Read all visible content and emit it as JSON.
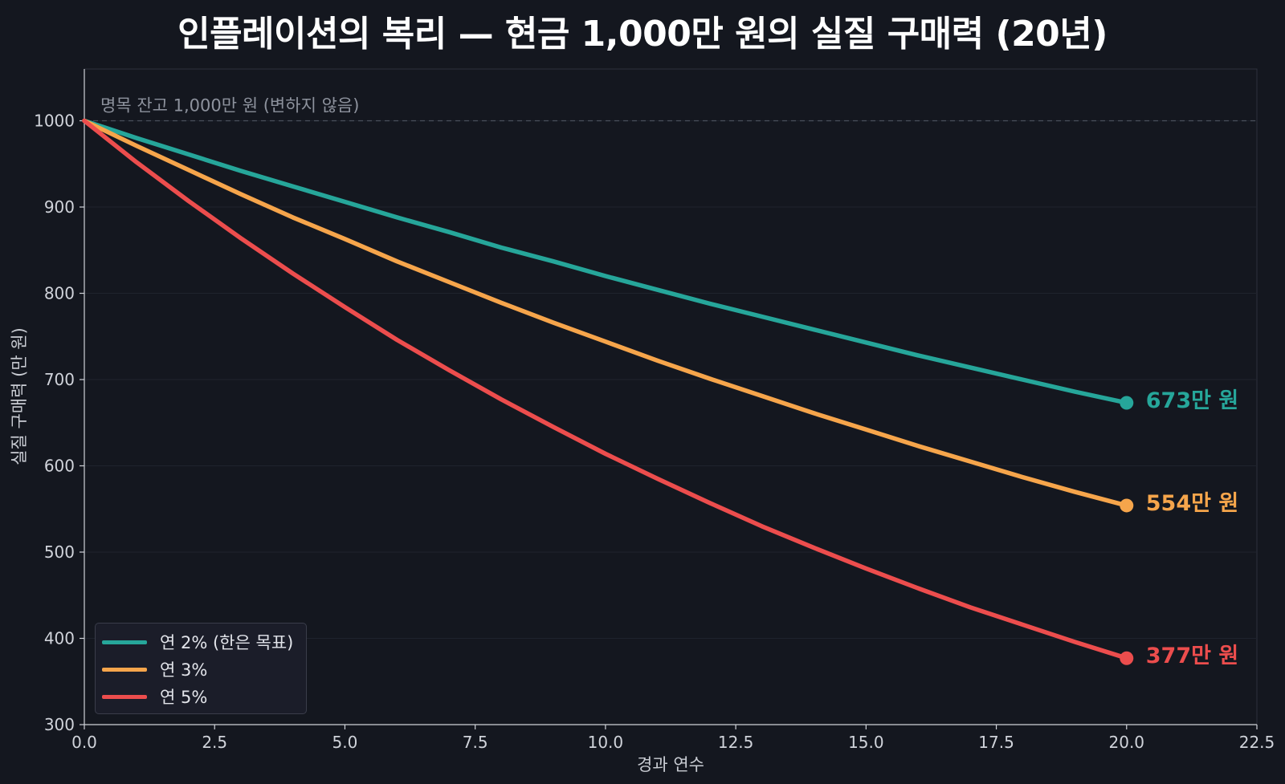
{
  "chart_data": {
    "type": "line",
    "title": "인플레이션의 복리 — 현금 1,000만 원의 실질 구매력 (20년)",
    "xlabel": "경과 연수",
    "ylabel": "실질 구매력 (만 원)",
    "xlim": [
      0,
      22.5
    ],
    "ylim": [
      300,
      1060
    ],
    "xticks": [
      "0.0",
      "2.5",
      "5.0",
      "7.5",
      "10.0",
      "12.5",
      "15.0",
      "17.5",
      "20.0",
      "22.5"
    ],
    "xtick_values": [
      0,
      2.5,
      5,
      7.5,
      10,
      12.5,
      15,
      17.5,
      20,
      22.5
    ],
    "yticks": [
      "300",
      "400",
      "500",
      "600",
      "700",
      "800",
      "900",
      "1000"
    ],
    "ytick_values": [
      300,
      400,
      500,
      600,
      700,
      800,
      900,
      1000
    ],
    "grid": true,
    "legend_position": "bottom-left",
    "reference_line": {
      "y": 1000,
      "label": "명목 잔고 1,000만 원 (변하지 않음)",
      "color": "#4a4f5c"
    },
    "series": [
      {
        "name": "연 2% (한은 목표)",
        "rate": 0.02,
        "color": "#26a69a",
        "end_label": "673만 원",
        "x": [
          0,
          1,
          2,
          3,
          4,
          5,
          6,
          7,
          8,
          9,
          10,
          11,
          12,
          13,
          14,
          15,
          16,
          17,
          18,
          19,
          20
        ],
        "y": [
          1000,
          980,
          961,
          942,
          924,
          906,
          888,
          871,
          853,
          837,
          820,
          804,
          788,
          773,
          758,
          743,
          728,
          714,
          700,
          686,
          673
        ]
      },
      {
        "name": "연 3%",
        "rate": 0.03,
        "color": "#f6a54b",
        "end_label": "554만 원",
        "x": [
          0,
          1,
          2,
          3,
          4,
          5,
          6,
          7,
          8,
          9,
          10,
          11,
          12,
          13,
          14,
          15,
          16,
          17,
          18,
          19,
          20
        ],
        "y": [
          1000,
          971,
          943,
          915,
          888,
          863,
          837,
          813,
          789,
          766,
          744,
          722,
          701,
          681,
          661,
          642,
          623,
          605,
          587,
          570,
          554
        ]
      },
      {
        "name": "연 5%",
        "rate": 0.05,
        "color": "#ec4d4d",
        "end_label": "377만 원",
        "x": [
          0,
          1,
          2,
          3,
          4,
          5,
          6,
          7,
          8,
          9,
          10,
          11,
          12,
          13,
          14,
          15,
          16,
          17,
          18,
          19,
          20
        ],
        "y": [
          1000,
          952,
          907,
          864,
          823,
          784,
          746,
          711,
          677,
          645,
          614,
          585,
          557,
          530,
          505,
          481,
          458,
          436,
          416,
          396,
          377
        ]
      }
    ]
  }
}
